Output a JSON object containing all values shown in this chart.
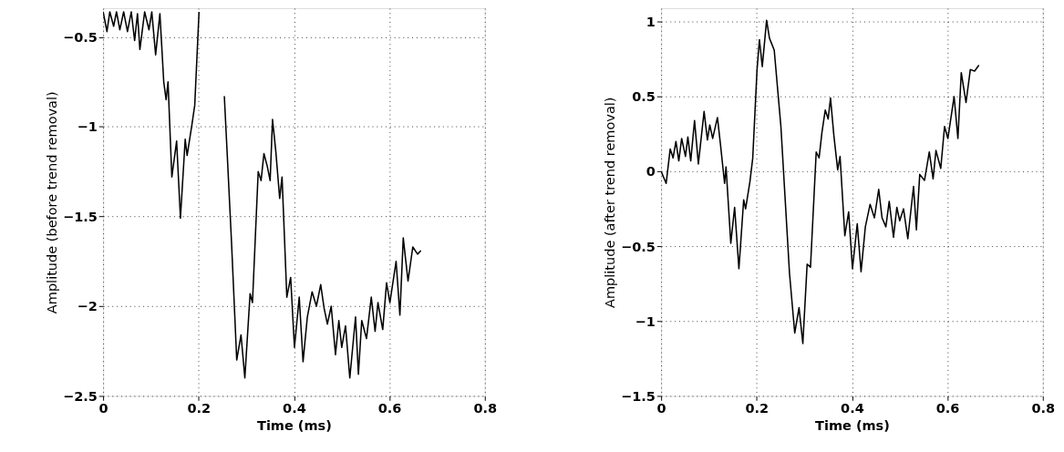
{
  "chart_data": [
    {
      "type": "line",
      "xlabel": "Time (ms)",
      "ylabel": "Amplitude (before trend removal)",
      "xlim": [
        0,
        0.8
      ],
      "xticks": [
        0,
        0.2,
        0.4,
        0.6,
        0.8
      ],
      "ylim": [
        -2.5,
        -0.34
      ],
      "yticks": [
        -2.5,
        -2,
        -1.5,
        -1,
        -0.5
      ],
      "grid": true,
      "x": [
        0,
        0.008,
        0.014,
        0.022,
        0.028,
        0.035,
        0.043,
        0.051,
        0.059,
        0.066,
        0.072,
        0.077,
        0.087,
        0.096,
        0.102,
        0.11,
        0.119,
        0.127,
        0.132,
        0.136,
        0.144,
        0.154,
        0.162,
        0.172,
        0.176,
        0.186,
        0.192,
        0.201,
        0.22,
        0.24,
        0.254,
        0.26,
        0.269,
        0.28,
        0.289,
        0.297,
        0.308,
        0.313,
        0.325,
        0.331,
        0.337,
        0.344,
        0.35,
        0.355,
        0.362,
        0.37,
        0.375,
        0.385,
        0.393,
        0.401,
        0.411,
        0.419,
        0.428,
        0.438,
        0.447,
        0.456,
        0.463,
        0.47,
        0.478,
        0.487,
        0.494,
        0.5,
        0.508,
        0.517,
        0.529,
        0.535,
        0.542,
        0.552,
        0.562,
        0.57,
        0.576,
        0.586,
        0.594,
        0.601,
        0.614,
        0.622,
        0.629,
        0.639,
        0.649,
        0.659,
        0.666
      ],
      "series": [
        {
          "color": "#000000",
          "values": [
            -0.36,
            -0.47,
            -0.36,
            -0.44,
            -0.36,
            -0.46,
            -0.36,
            -0.47,
            -0.36,
            -0.52,
            -0.37,
            -0.57,
            -0.36,
            -0.46,
            -0.36,
            -0.6,
            -0.37,
            -0.75,
            -0.85,
            -0.75,
            -1.28,
            -1.08,
            -1.51,
            -1.07,
            -1.16,
            -0.99,
            -0.88,
            -0.36,
            null,
            null,
            -0.83,
            -1.15,
            -1.64,
            -2.3,
            -2.16,
            -2.4,
            -1.93,
            -1.98,
            -1.25,
            -1.3,
            -1.15,
            -1.22,
            -1.3,
            -0.96,
            -1.14,
            -1.4,
            -1.28,
            -1.95,
            -1.84,
            -2.23,
            -1.95,
            -2.31,
            -2.06,
            -1.92,
            -2.0,
            -1.88,
            -2.01,
            -2.1,
            -2.0,
            -2.27,
            -2.08,
            -2.23,
            -2.11,
            -2.4,
            -2.06,
            -2.38,
            -2.08,
            -2.18,
            -1.95,
            -2.14,
            -1.98,
            -2.13,
            -1.87,
            -1.98,
            -1.75,
            -2.05,
            -1.62,
            -1.86,
            -1.67,
            -1.71,
            -1.69
          ]
        }
      ]
    },
    {
      "type": "line",
      "xlabel": "Time (ms)",
      "ylabel": "Amplitude (after trend removal)",
      "xlim": [
        0,
        0.8
      ],
      "xticks": [
        0,
        0.2,
        0.4,
        0.6,
        0.8
      ],
      "ylim": [
        -1.5,
        1.09
      ],
      "yticks": [
        -1.5,
        -1,
        -0.5,
        0,
        0.5,
        1
      ],
      "grid": true,
      "x": [
        0,
        0.0105,
        0.019,
        0.025,
        0.031,
        0.037,
        0.043,
        0.051,
        0.056,
        0.062,
        0.07,
        0.078,
        0.09,
        0.097,
        0.102,
        0.108,
        0.118,
        0.124,
        0.133,
        0.136,
        0.146,
        0.154,
        0.163,
        0.173,
        0.177,
        0.186,
        0.192,
        0.201,
        0.206,
        0.212,
        0.221,
        0.227,
        0.237,
        0.251,
        0.26,
        0.269,
        0.28,
        0.289,
        0.297,
        0.306,
        0.313,
        0.325,
        0.331,
        0.337,
        0.344,
        0.35,
        0.355,
        0.362,
        0.37,
        0.375,
        0.385,
        0.393,
        0.401,
        0.411,
        0.419,
        0.428,
        0.438,
        0.447,
        0.456,
        0.463,
        0.471,
        0.478,
        0.487,
        0.494,
        0.5,
        0.508,
        0.517,
        0.529,
        0.535,
        0.542,
        0.552,
        0.562,
        0.57,
        0.576,
        0.586,
        0.594,
        0.601,
        0.614,
        0.622,
        0.629,
        0.639,
        0.648,
        0.657,
        0.666
      ],
      "series": [
        {
          "color": "#000000",
          "values": [
            0,
            -0.08,
            0.15,
            0.09,
            0.2,
            0.07,
            0.22,
            0.1,
            0.23,
            0.07,
            0.34,
            0.05,
            0.4,
            0.21,
            0.31,
            0.22,
            0.36,
            0.19,
            -0.08,
            0.03,
            -0.48,
            -0.24,
            -0.65,
            -0.19,
            -0.25,
            -0.07,
            0.09,
            0.68,
            0.88,
            0.7,
            1.01,
            0.89,
            0.81,
            0.3,
            -0.19,
            -0.68,
            -1.08,
            -0.91,
            -1.15,
            -0.62,
            -0.64,
            0.13,
            0.09,
            0.26,
            0.41,
            0.35,
            0.49,
            0.24,
            0.01,
            0.1,
            -0.43,
            -0.27,
            -0.65,
            -0.35,
            -0.67,
            -0.37,
            -0.22,
            -0.31,
            -0.12,
            -0.31,
            -0.37,
            -0.2,
            -0.44,
            -0.24,
            -0.33,
            -0.25,
            -0.45,
            -0.1,
            -0.39,
            -0.02,
            -0.06,
            0.13,
            -0.05,
            0.14,
            0.02,
            0.3,
            0.22,
            0.5,
            0.22,
            0.66,
            0.46,
            0.68,
            0.67,
            0.71
          ]
        }
      ]
    }
  ]
}
